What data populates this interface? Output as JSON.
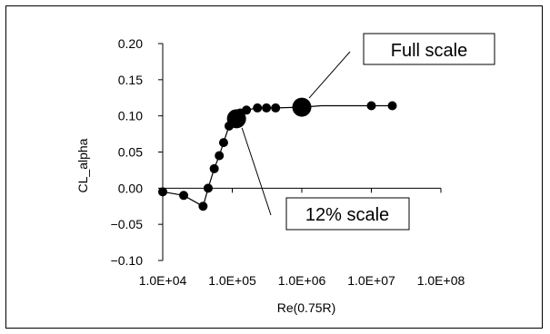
{
  "chart_data": {
    "type": "scatter",
    "title": "",
    "xlabel": "Re(0.75R)",
    "ylabel": "CL_alpha",
    "x_scale": "log",
    "xlim": [
      10000,
      100000000
    ],
    "ylim": [
      -0.1,
      0.2
    ],
    "x_ticks": [
      10000,
      100000,
      1000000,
      10000000,
      100000000
    ],
    "x_tick_labels": [
      "1.0E+04",
      "1.0E+05",
      "1.0E+06",
      "1.0E+07",
      "1.0E+08"
    ],
    "y_ticks": [
      -0.1,
      -0.05,
      0.0,
      0.05,
      0.1,
      0.15,
      0.2
    ],
    "y_tick_labels": [
      "−0.10",
      "−0.05",
      "0.00",
      "0.05",
      "0.10",
      "0.15",
      "0.20"
    ],
    "grid": false,
    "series": [
      {
        "points": [
          [
            10000,
            -0.005
          ],
          [
            20000,
            -0.01
          ],
          [
            38000,
            -0.025
          ],
          [
            45000,
            0.0
          ],
          [
            55000,
            0.027
          ],
          [
            65000,
            0.045
          ],
          [
            75000,
            0.063
          ],
          [
            90000,
            0.086
          ],
          [
            105000,
            0.094
          ],
          [
            130000,
            0.104
          ],
          [
            160000,
            0.108
          ],
          [
            230000,
            0.111
          ],
          [
            310000,
            0.111
          ],
          [
            420000,
            0.111
          ],
          [
            10000000,
            0.114
          ],
          [
            20000000,
            0.114
          ]
        ]
      }
    ],
    "highlighted_points": [
      {
        "x": 115000,
        "y": 0.096
      },
      {
        "x": 1000000,
        "y": 0.112
      }
    ],
    "curve": [
      [
        10000,
        -0.005
      ],
      [
        20000,
        -0.01
      ],
      [
        38000,
        -0.025
      ],
      [
        45000,
        0.0
      ],
      [
        55000,
        0.027
      ],
      [
        65000,
        0.045
      ],
      [
        75000,
        0.063
      ],
      [
        90000,
        0.086
      ],
      [
        105000,
        0.094
      ],
      [
        130000,
        0.104
      ],
      [
        160000,
        0.108
      ],
      [
        230000,
        0.111
      ],
      [
        420000,
        0.111
      ],
      [
        1000000,
        0.112
      ],
      [
        1900000,
        0.114
      ],
      [
        20000000,
        0.114
      ]
    ],
    "annotations": [
      {
        "text": "Full scale",
        "target_x": 1000000,
        "target_y": 0.112
      },
      {
        "text": "12% scale",
        "target_x": 115000,
        "target_y": 0.096
      }
    ]
  }
}
